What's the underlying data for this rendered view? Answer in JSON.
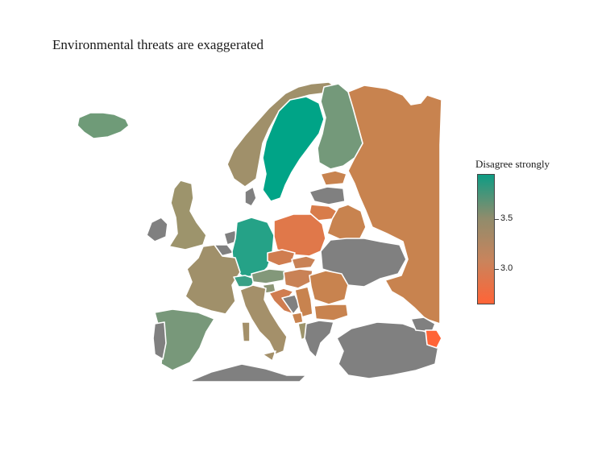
{
  "title": "Environmental threats are exaggerated",
  "legend": {
    "title": "Disagree strongly",
    "ticks": [
      {
        "label": "3.5",
        "value": 3.5
      },
      {
        "label": "3.0",
        "value": 3.0
      }
    ],
    "range": [
      2.65,
      3.95
    ],
    "gradient": [
      "#0e9c84",
      "#8f8c6c",
      "#c9845c",
      "#ff6437"
    ]
  },
  "no_data_color": "#808080",
  "regions": [
    {
      "name": "Iceland",
      "color": "#6f9b78"
    },
    {
      "name": "Norway",
      "color": "#a0906a"
    },
    {
      "name": "Sweden",
      "color": "#00a487"
    },
    {
      "name": "Finland",
      "color": "#74997a"
    },
    {
      "name": "Russia",
      "color": "#c8834f"
    },
    {
      "name": "United Kingdom",
      "color": "#9d946c"
    },
    {
      "name": "Ireland",
      "color": "#808080"
    },
    {
      "name": "Germany",
      "color": "#25a287"
    },
    {
      "name": "France",
      "color": "#a0906a"
    },
    {
      "name": "Spain",
      "color": "#78987a"
    },
    {
      "name": "Portugal",
      "color": "#808080"
    },
    {
      "name": "Italy",
      "color": "#a4906a"
    },
    {
      "name": "Poland",
      "color": "#e0784a"
    },
    {
      "name": "Switzerland",
      "color": "#3aa086"
    },
    {
      "name": "Austria",
      "color": "#83987a"
    },
    {
      "name": "Czechia",
      "color": "#d07d50"
    },
    {
      "name": "Slovakia",
      "color": "#c98256"
    },
    {
      "name": "Hungary",
      "color": "#c98256"
    },
    {
      "name": "Slovenia",
      "color": "#8c9676"
    },
    {
      "name": "Belgium",
      "color": "#808080"
    },
    {
      "name": "Netherlands",
      "color": "#808080"
    },
    {
      "name": "Denmark",
      "color": "#808080"
    },
    {
      "name": "Estonia",
      "color": "#c8834f"
    },
    {
      "name": "Latvia",
      "color": "#808080"
    },
    {
      "name": "Lithuania",
      "color": "#d87c4a"
    },
    {
      "name": "Belarus",
      "color": "#c8834f"
    },
    {
      "name": "Ukraine",
      "color": "#808080"
    },
    {
      "name": "Romania",
      "color": "#c8834f"
    },
    {
      "name": "Bulgaria",
      "color": "#c8834f"
    },
    {
      "name": "Serbia",
      "color": "#c8834f"
    },
    {
      "name": "Croatia",
      "color": "#d07d50"
    },
    {
      "name": "Bosnia",
      "color": "#808080"
    },
    {
      "name": "Montenegro",
      "color": "#c8834f"
    },
    {
      "name": "Albania",
      "color": "#9d946c"
    },
    {
      "name": "Greece",
      "color": "#808080"
    },
    {
      "name": "Turkey",
      "color": "#808080"
    },
    {
      "name": "Georgia",
      "color": "#808080"
    },
    {
      "name": "Armenia",
      "color": "#ff6437"
    },
    {
      "name": "North Africa",
      "color": "#808080"
    }
  ]
}
